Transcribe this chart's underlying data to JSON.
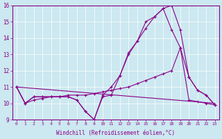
{
  "xlabel": "Windchill (Refroidissement éolien,°C)",
  "xlim": [
    -0.5,
    23.5
  ],
  "ylim": [
    9,
    16
  ],
  "bg_color": "#cce8f0",
  "line_color": "#880088",
  "line1_x": [
    0,
    1,
    2,
    3,
    4,
    5,
    6,
    7,
    8,
    9,
    10,
    11,
    12,
    13,
    14,
    15,
    16,
    17,
    18,
    19,
    20,
    21,
    22,
    23
  ],
  "line1_y": [
    11.0,
    10.0,
    10.4,
    10.4,
    10.4,
    10.4,
    10.4,
    10.2,
    9.5,
    9.0,
    10.5,
    11.0,
    11.7,
    13.1,
    13.8,
    15.0,
    15.3,
    15.8,
    16.0,
    14.5,
    11.6,
    10.8,
    10.5,
    9.9
  ],
  "line2_x": [
    0,
    1,
    2,
    3,
    4,
    5,
    6,
    7,
    8,
    9,
    10,
    11,
    12,
    13,
    14,
    15,
    16,
    17,
    18,
    19,
    20,
    21,
    22,
    23
  ],
  "line2_y": [
    11.0,
    10.0,
    10.4,
    10.4,
    10.4,
    10.4,
    10.4,
    10.2,
    9.5,
    9.0,
    10.4,
    10.5,
    11.7,
    13.0,
    13.8,
    14.6,
    15.3,
    15.8,
    14.5,
    13.4,
    11.6,
    10.8,
    10.5,
    9.9
  ],
  "line3_x": [
    0,
    1,
    2,
    3,
    4,
    5,
    6,
    7,
    8,
    9,
    10,
    11,
    12,
    13,
    14,
    15,
    16,
    17,
    18,
    19,
    20,
    21,
    22,
    23
  ],
  "line3_y": [
    11.0,
    10.0,
    10.2,
    10.3,
    10.4,
    10.4,
    10.5,
    10.5,
    10.5,
    10.6,
    10.7,
    10.8,
    10.9,
    11.0,
    11.2,
    11.4,
    11.6,
    11.8,
    12.0,
    13.4,
    10.2,
    10.1,
    10.0,
    9.9
  ],
  "line4_x": [
    0,
    23
  ],
  "line4_y": [
    11.0,
    10.0
  ],
  "xtick_labels": [
    "0",
    "1",
    "2",
    "3",
    "4",
    "5",
    "6",
    "7",
    "8",
    "9",
    "10",
    "11",
    "12",
    "13",
    "14",
    "15",
    "16",
    "17",
    "18",
    "19",
    "20",
    "21",
    "22",
    "23"
  ]
}
